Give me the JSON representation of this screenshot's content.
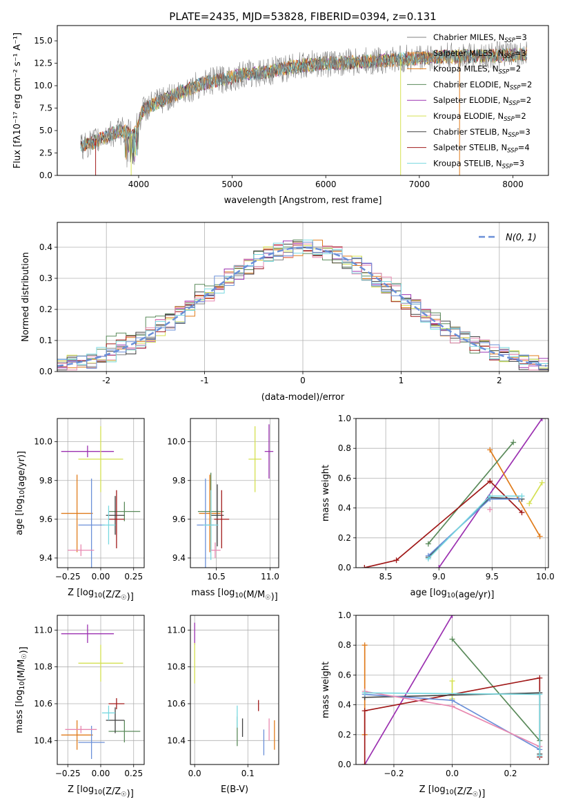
{
  "figure_title": "PLATE=2435, MJD=53828, FIBERID=0394, z=0.131",
  "colors": {
    "Chabrier MILES": "#808080",
    "Salpeter MILES": "#e69138",
    "Kroupa MILES": "#e07b1a",
    "Chabrier ELODIE": "#5a8a5a",
    "Salpeter ELODIE": "#9b30b0",
    "Kroupa ELODIE": "#d4e050",
    "Chabrier STELIB": "#404040",
    "Salpeter STELIB": "#a01818",
    "Kroupa STELIB": "#78d8e0",
    "extra_blue": "#6a8fd8",
    "extra_pink": "#e888b0",
    "normal_curve": "#6a8fd8"
  },
  "chart_data": [
    {
      "id": "spectrum",
      "type": "line",
      "title": "PLATE=2435, MJD=53828, FIBERID=0394, z=0.131",
      "xlabel": "wavelength [Angstrom, rest frame]",
      "ylabel": "Flux [fλ10⁻¹⁷ erg cm⁻² s⁻¹ A⁻¹]",
      "xlim": [
        3130,
        8380
      ],
      "ylim": [
        0,
        16.7
      ],
      "xticks": [
        4000,
        5000,
        6000,
        7000,
        8000
      ],
      "yticks": [
        0.0,
        2.5,
        5.0,
        7.5,
        10.0,
        12.5,
        15.0
      ],
      "legend_position": "top-right",
      "legend": [
        {
          "label": "Chabrier MILES, N",
          "sub": "SSP",
          "tail": "=3",
          "color_key": "Chabrier MILES"
        },
        {
          "label": "Salpeter MILES, N",
          "sub": "SSP",
          "tail": "=3",
          "color_key": "Salpeter MILES"
        },
        {
          "label": "Kroupa MILES, N",
          "sub": "SSP",
          "tail": "=2",
          "color_key": "Kroupa MILES"
        },
        {
          "label": "Chabrier ELODIE, N",
          "sub": "SSP",
          "tail": "=2",
          "color_key": "Chabrier ELODIE"
        },
        {
          "label": "Salpeter ELODIE, N",
          "sub": "SSP",
          "tail": "=2",
          "color_key": "Salpeter ELODIE"
        },
        {
          "label": "Kroupa ELODIE, N",
          "sub": "SSP",
          "tail": "=2",
          "color_key": "Kroupa ELODIE"
        },
        {
          "label": "Chabrier STELIB, N",
          "sub": "SSP",
          "tail": "=3",
          "color_key": "Chabrier STELIB"
        },
        {
          "label": "Salpeter STELIB, N",
          "sub": "SSP",
          "tail": "=4",
          "color_key": "Salpeter STELIB"
        },
        {
          "label": "Kroupa STELIB, N",
          "sub": "SSP",
          "tail": "=3",
          "color_key": "Kroupa STELIB"
        }
      ],
      "continuum": [
        [
          3380,
          3.3
        ],
        [
          3500,
          3.6
        ],
        [
          3700,
          4.6
        ],
        [
          3850,
          5.0
        ],
        [
          3950,
          4.5
        ],
        [
          4050,
          7.4
        ],
        [
          4300,
          8.6
        ],
        [
          4500,
          9.5
        ],
        [
          4700,
          10.3
        ],
        [
          4900,
          10.7
        ],
        [
          5100,
          11.2
        ],
        [
          5400,
          11.6
        ],
        [
          5700,
          12.2
        ],
        [
          6000,
          12.5
        ],
        [
          6300,
          12.6
        ],
        [
          6600,
          12.8
        ],
        [
          6900,
          13.0
        ],
        [
          7200,
          13.2
        ],
        [
          7600,
          13.3
        ],
        [
          8000,
          13.4
        ],
        [
          8150,
          13.5
        ]
      ],
      "dropouts": [
        {
          "x": 3540,
          "color_key": "Salpeter STELIB"
        },
        {
          "x": 3920,
          "color_key": "Kroupa ELODIE"
        },
        {
          "x": 6800,
          "color_key": "Kroupa ELODIE"
        },
        {
          "x": 7430,
          "color_key": "Kroupa MILES"
        }
      ]
    },
    {
      "id": "residuals",
      "type": "line",
      "xlabel": "(data-model)/error",
      "ylabel": "Normed distribution",
      "xlim": [
        -2.5,
        2.5
      ],
      "ylim": [
        0,
        0.48
      ],
      "xticks": [
        -2,
        -1,
        0,
        1,
        2
      ],
      "yticks": [
        0.0,
        0.1,
        0.2,
        0.3,
        0.4
      ],
      "legend_position": "top-right",
      "legend": [
        {
          "label": "N(0, 1)",
          "color_key": "normal_curve"
        }
      ],
      "normal_curve": {
        "mean": 0,
        "sigma": 1
      }
    },
    {
      "id": "age-vs-Z",
      "type": "scatter",
      "xlabel": "Z [log10(Z/Z☉)]",
      "ylabel": "age  [log10(age/yr)]",
      "xlim": [
        -0.33,
        0.33
      ],
      "ylim": [
        9.35,
        10.12
      ],
      "xticks": [
        -0.25,
        0.0,
        0.25
      ],
      "xtick_labels": [
        "−0.25",
        "0.00",
        "0.25"
      ],
      "yticks": [
        9.4,
        9.6,
        9.8,
        10.0
      ],
      "points": [
        {
          "x": -0.1,
          "y": 9.95,
          "xerr": 0.2,
          "yerr": 0.03,
          "color_key": "Salpeter ELODIE"
        },
        {
          "x": 0.0,
          "y": 9.91,
          "xerr": 0.17,
          "yerr": 0.17,
          "color_key": "Kroupa ELODIE"
        },
        {
          "x": -0.18,
          "y": 9.63,
          "xerr": 0.12,
          "yerr": 0.2,
          "color_key": "Kroupa MILES"
        },
        {
          "x": -0.07,
          "y": 9.57,
          "xerr": 0.1,
          "yerr": 0.24,
          "color_key": "extra_blue"
        },
        {
          "x": -0.15,
          "y": 9.44,
          "xerr": 0.1,
          "yerr": 0.03,
          "color_key": "extra_pink"
        },
        {
          "x": 0.18,
          "y": 9.64,
          "xerr": 0.12,
          "yerr": 0.05,
          "color_key": "Chabrier ELODIE"
        },
        {
          "x": 0.11,
          "y": 9.62,
          "xerr": 0.07,
          "yerr": 0.1,
          "color_key": "Chabrier STELIB"
        },
        {
          "x": 0.12,
          "y": 9.6,
          "xerr": 0.06,
          "yerr": 0.15,
          "color_key": "Salpeter STELIB"
        },
        {
          "x": 0.06,
          "y": 9.57,
          "xerr": 0.05,
          "yerr": 0.1,
          "color_key": "Kroupa STELIB"
        }
      ]
    },
    {
      "id": "age-vs-mass",
      "type": "scatter",
      "xlabel": "mass [log10(M/M☉)]",
      "ylabel": "",
      "xlim": [
        10.26,
        11.08
      ],
      "ylim": [
        9.35,
        10.12
      ],
      "xticks": [
        10.5,
        11.0
      ],
      "xtick_labels": [
        "10.5",
        "11.0"
      ],
      "yticks": [
        9.4,
        9.6,
        9.8,
        10.0
      ],
      "points": [
        {
          "x": 10.99,
          "y": 9.95,
          "xerr": 0.04,
          "yerr": 0.14,
          "color_key": "Salpeter ELODIE"
        },
        {
          "x": 10.86,
          "y": 9.91,
          "xerr": 0.06,
          "yerr": 0.17,
          "color_key": "Kroupa ELODIE"
        },
        {
          "x": 10.44,
          "y": 9.63,
          "xerr": 0.1,
          "yerr": 0.2,
          "color_key": "Kroupa MILES"
        },
        {
          "x": 10.4,
          "y": 9.57,
          "xerr": 0.08,
          "yerr": 0.24,
          "color_key": "extra_blue"
        },
        {
          "x": 10.49,
          "y": 9.44,
          "xerr": 0.05,
          "yerr": 0.04,
          "color_key": "extra_pink"
        },
        {
          "x": 10.45,
          "y": 9.64,
          "xerr": 0.12,
          "yerr": 0.2,
          "color_key": "Chabrier ELODIE"
        },
        {
          "x": 10.51,
          "y": 9.62,
          "xerr": 0.06,
          "yerr": 0.16,
          "color_key": "Chabrier STELIB"
        },
        {
          "x": 10.55,
          "y": 9.6,
          "xerr": 0.07,
          "yerr": 0.15,
          "color_key": "Salpeter STELIB"
        },
        {
          "x": 10.45,
          "y": 9.57,
          "xerr": 0.07,
          "yerr": 0.18,
          "color_key": "Kroupa STELIB"
        }
      ]
    },
    {
      "id": "weight-vs-age",
      "type": "line",
      "xlabel": "age  [log10(age/yr)]",
      "ylabel": "mass weight",
      "xlim": [
        8.22,
        10.03
      ],
      "ylim": [
        0,
        1
      ],
      "xticks": [
        8.5,
        9.0,
        9.5,
        10.0
      ],
      "xtick_labels": [
        "8.5",
        "9.0",
        "9.5",
        "10.0"
      ],
      "yticks": [
        0.0,
        0.2,
        0.4,
        0.6,
        0.8,
        1.0
      ],
      "series": [
        {
          "color_key": "Salpeter ELODIE",
          "x": [
            9.0,
            9.97
          ],
          "y": [
            0.0,
            1.0
          ]
        },
        {
          "color_key": "Kroupa MILES",
          "x": [
            9.48,
            9.95
          ],
          "y": [
            0.79,
            0.21
          ]
        },
        {
          "color_key": "Chabrier ELODIE",
          "x": [
            8.9,
            9.7
          ],
          "y": [
            0.16,
            0.84
          ]
        },
        {
          "color_key": "Kroupa ELODIE",
          "x": [
            9.85,
            9.97
          ],
          "y": [
            0.43,
            0.57
          ]
        },
        {
          "color_key": "Salpeter STELIB",
          "x": [
            8.3,
            8.6,
            9.48,
            9.78
          ],
          "y": [
            0.0,
            0.05,
            0.58,
            0.37
          ]
        },
        {
          "color_key": "Chabrier STELIB",
          "x": [
            8.9,
            9.48,
            9.78
          ],
          "y": [
            0.07,
            0.47,
            0.46
          ]
        },
        {
          "color_key": "extra_blue",
          "x": [
            8.9,
            9.48,
            9.75
          ],
          "y": [
            0.08,
            0.46,
            0.46
          ]
        },
        {
          "color_key": "Kroupa STELIB",
          "x": [
            8.9,
            9.48,
            9.78
          ],
          "y": [
            0.06,
            0.48,
            0.48
          ]
        },
        {
          "color_key": "extra_pink",
          "x": [
            9.48
          ],
          "y": [
            0.39
          ]
        }
      ]
    },
    {
      "id": "mass-vs-Z",
      "type": "scatter",
      "xlabel": "Z [log10(Z/Z☉)]",
      "ylabel": "mass [log10(M/M☉)]",
      "xlim": [
        -0.33,
        0.33
      ],
      "ylim": [
        10.27,
        11.08
      ],
      "xticks": [
        -0.25,
        0.0,
        0.25
      ],
      "xtick_labels": [
        "−0.25",
        "0.00",
        "0.25"
      ],
      "yticks": [
        10.4,
        10.6,
        10.8,
        11.0
      ],
      "points": [
        {
          "x": -0.1,
          "y": 10.98,
          "xerr": 0.2,
          "yerr": 0.05,
          "color_key": "Salpeter ELODIE"
        },
        {
          "x": 0.0,
          "y": 10.82,
          "xerr": 0.17,
          "yerr": 0.1,
          "color_key": "Kroupa ELODIE"
        },
        {
          "x": -0.18,
          "y": 10.43,
          "xerr": 0.12,
          "yerr": 0.08,
          "color_key": "Kroupa MILES"
        },
        {
          "x": -0.07,
          "y": 10.39,
          "xerr": 0.1,
          "yerr": 0.09,
          "color_key": "extra_blue"
        },
        {
          "x": -0.15,
          "y": 10.46,
          "xerr": 0.12,
          "yerr": 0.02,
          "color_key": "extra_pink"
        },
        {
          "x": 0.18,
          "y": 10.45,
          "xerr": 0.12,
          "yerr": 0.06,
          "color_key": "Chabrier ELODIE"
        },
        {
          "x": 0.11,
          "y": 10.51,
          "xerr": 0.07,
          "yerr": 0.07,
          "color_key": "Chabrier STELIB"
        },
        {
          "x": 0.12,
          "y": 10.6,
          "xerr": 0.06,
          "yerr": 0.03,
          "color_key": "Salpeter STELIB"
        },
        {
          "x": 0.06,
          "y": 10.55,
          "xerr": 0.05,
          "yerr": 0.04,
          "color_key": "Kroupa STELIB"
        }
      ]
    },
    {
      "id": "mass-vs-EBV",
      "type": "scatter",
      "xlabel": "E(B-V)",
      "ylabel": "",
      "xlim": [
        -0.008,
        0.158
      ],
      "ylim": [
        10.27,
        11.08
      ],
      "xticks": [
        0.0,
        0.1
      ],
      "xtick_labels": [
        "0.0",
        "0.1"
      ],
      "yticks": [
        10.4,
        10.6,
        10.8,
        11.0
      ],
      "points": [
        {
          "x": 0.0,
          "y": 10.98,
          "xerr": 0.0,
          "yerr": 0.06,
          "color_key": "Salpeter ELODIE"
        },
        {
          "x": 0.0,
          "y": 10.82,
          "xerr": 0.0,
          "yerr": 0.11,
          "color_key": "Kroupa ELODIE"
        },
        {
          "x": 0.15,
          "y": 10.43,
          "xerr": 0.0,
          "yerr": 0.08,
          "color_key": "Kroupa MILES"
        },
        {
          "x": 0.13,
          "y": 10.39,
          "xerr": 0.0,
          "yerr": 0.07,
          "color_key": "extra_blue"
        },
        {
          "x": 0.14,
          "y": 10.46,
          "xerr": 0.0,
          "yerr": 0.06,
          "color_key": "extra_pink"
        },
        {
          "x": 0.08,
          "y": 10.45,
          "xerr": 0.0,
          "yerr": 0.08,
          "color_key": "Chabrier ELODIE"
        },
        {
          "x": 0.09,
          "y": 10.47,
          "xerr": 0.0,
          "yerr": 0.05,
          "color_key": "Chabrier STELIB"
        },
        {
          "x": 0.12,
          "y": 10.59,
          "xerr": 0.0,
          "yerr": 0.03,
          "color_key": "Salpeter STELIB"
        },
        {
          "x": 0.08,
          "y": 10.53,
          "xerr": 0.0,
          "yerr": 0.06,
          "color_key": "Kroupa STELIB"
        }
      ]
    },
    {
      "id": "weight-vs-Z",
      "type": "line",
      "xlabel": "Z [log10(Z/Z☉)]",
      "ylabel": "mass weight",
      "xlim": [
        -0.33,
        0.33
      ],
      "ylim": [
        0,
        1
      ],
      "xticks": [
        -0.2,
        0.0,
        0.2
      ],
      "xtick_labels": [
        "−0.2",
        "0.0",
        "0.2"
      ],
      "yticks": [
        0.0,
        0.2,
        0.4,
        0.6,
        0.8,
        1.0
      ],
      "series": [
        {
          "color_key": "Salpeter ELODIE",
          "x": [
            -0.3,
            0.0
          ],
          "y": [
            0.0,
            1.0
          ]
        },
        {
          "color_key": "Kroupa MILES",
          "x": [
            -0.3,
            -0.3
          ],
          "y": [
            0.8,
            0.2
          ]
        },
        {
          "color_key": "Chabrier ELODIE",
          "x": [
            0.0,
            0.3
          ],
          "y": [
            0.84,
            0.16
          ]
        },
        {
          "color_key": "Kroupa ELODIE",
          "x": [
            0.0,
            0.0
          ],
          "y": [
            0.56,
            0.44
          ]
        },
        {
          "color_key": "Salpeter STELIB",
          "x": [
            -0.3,
            -0.3,
            0.3,
            0.3
          ],
          "y": [
            0.0,
            0.36,
            0.58,
            0.05
          ]
        },
        {
          "color_key": "Chabrier STELIB",
          "x": [
            -0.3,
            0.3,
            0.3
          ],
          "y": [
            0.45,
            0.48,
            0.07
          ]
        },
        {
          "color_key": "extra_blue",
          "x": [
            -0.3,
            0.0,
            0.3
          ],
          "y": [
            0.47,
            0.43,
            0.1
          ]
        },
        {
          "color_key": "extra_pink",
          "x": [
            -0.3,
            0.0,
            0.3
          ],
          "y": [
            0.49,
            0.39,
            0.12
          ]
        },
        {
          "color_key": "Kroupa STELIB",
          "x": [
            -0.3,
            0.3,
            0.3
          ],
          "y": [
            0.48,
            0.47,
            0.06
          ]
        }
      ]
    }
  ]
}
